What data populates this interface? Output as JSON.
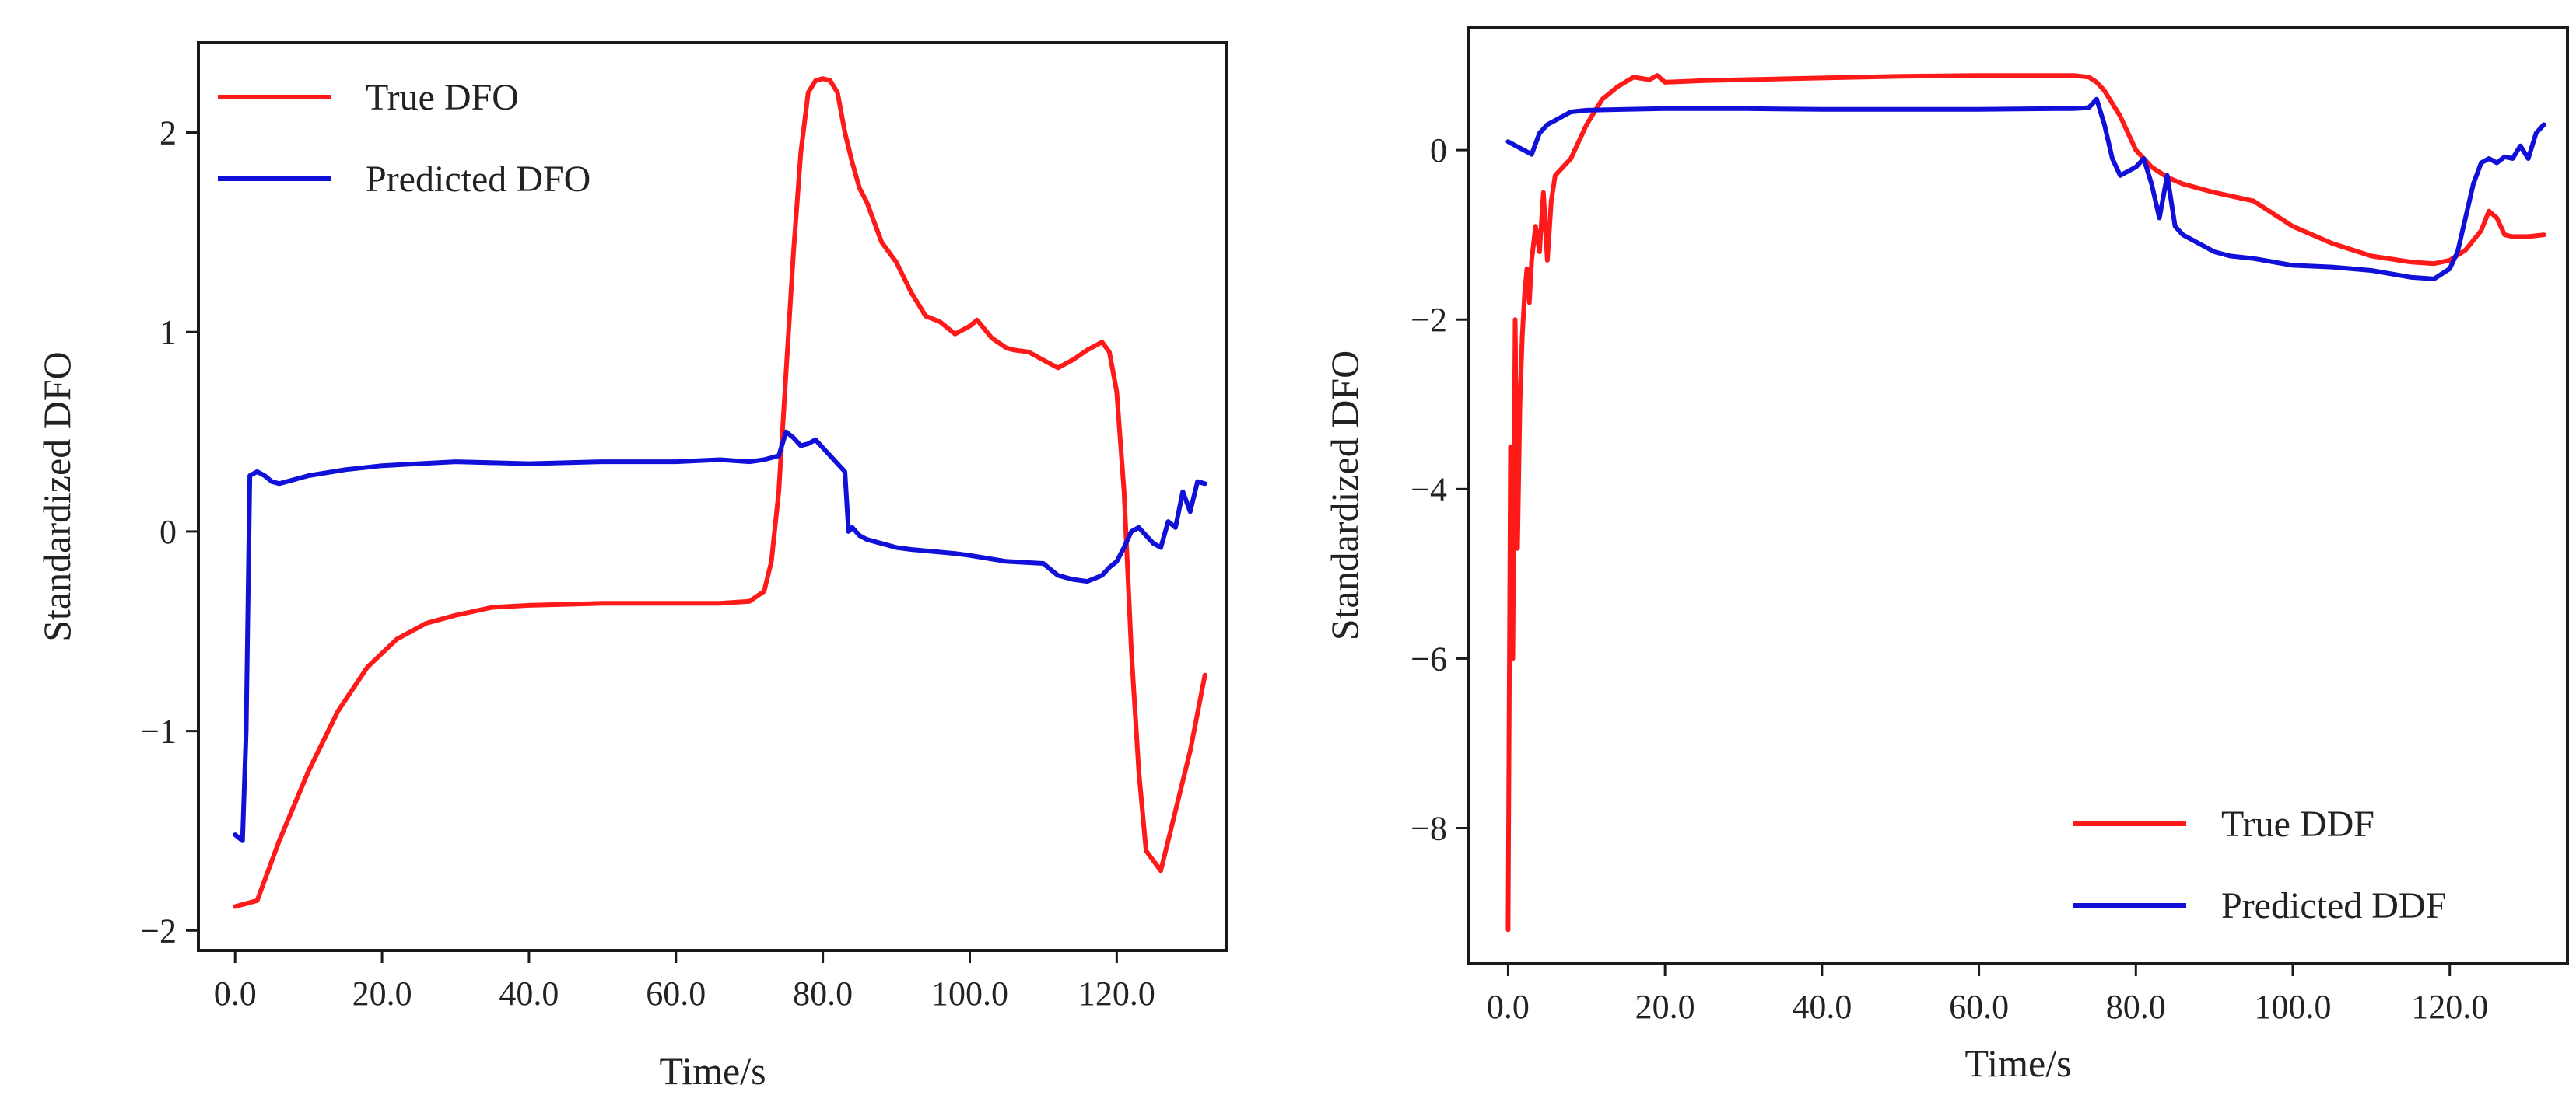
{
  "chart_data": [
    {
      "type": "line",
      "xlabel": "Time/s",
      "ylabel": "Standardized DFO",
      "xlim": [
        -5,
        135
      ],
      "ylim": [
        -2.1,
        2.45
      ],
      "xticks": [
        0,
        20,
        40,
        60,
        80,
        100,
        120
      ],
      "xtick_labels": [
        "0.0",
        "20.0",
        "40.0",
        "60.0",
        "80.0",
        "100.0",
        "120.0"
      ],
      "yticks": [
        -2,
        -1,
        0,
        1,
        2
      ],
      "ytick_labels": [
        "−2",
        "−1",
        "0",
        "1",
        "2"
      ],
      "legend_position": "top-left",
      "series": [
        {
          "name": "True DFO",
          "color": "#ff1a1a",
          "x": [
            0,
            3,
            6,
            10,
            14,
            18,
            22,
            26,
            30,
            35,
            40,
            50,
            60,
            66,
            70,
            72,
            73,
            74,
            75,
            76,
            77,
            78,
            79,
            80,
            81,
            82,
            83,
            84,
            85,
            86,
            88,
            90,
            92,
            94,
            96,
            98,
            100,
            101,
            103,
            105,
            106,
            108,
            110,
            112,
            114,
            116,
            118,
            119,
            120,
            121,
            122,
            123,
            124,
            125,
            126,
            128,
            130,
            132
          ],
          "y": [
            -1.88,
            -1.85,
            -1.55,
            -1.2,
            -0.9,
            -0.68,
            -0.54,
            -0.46,
            -0.42,
            -0.38,
            -0.37,
            -0.36,
            -0.36,
            -0.36,
            -0.35,
            -0.3,
            -0.15,
            0.2,
            0.8,
            1.4,
            1.9,
            2.2,
            2.26,
            2.27,
            2.26,
            2.2,
            2.0,
            1.85,
            1.72,
            1.65,
            1.45,
            1.35,
            1.2,
            1.08,
            1.05,
            0.99,
            1.03,
            1.06,
            0.97,
            0.92,
            0.91,
            0.9,
            0.86,
            0.82,
            0.86,
            0.91,
            0.95,
            0.9,
            0.7,
            0.2,
            -0.6,
            -1.2,
            -1.6,
            -1.65,
            -1.7,
            -1.4,
            -1.1,
            -0.72
          ]
        },
        {
          "name": "Predicted DFO",
          "color": "#1010d8",
          "x": [
            0,
            1,
            1.5,
            2,
            3,
            4,
            5,
            6,
            8,
            10,
            15,
            20,
            30,
            40,
            50,
            60,
            66,
            70,
            72,
            74,
            75,
            76,
            77,
            78,
            79,
            80,
            81,
            82,
            83,
            83.5,
            84,
            85,
            86,
            88,
            90,
            92,
            95,
            98,
            100,
            105,
            110,
            112,
            114,
            116,
            118,
            119,
            120,
            121,
            122,
            123,
            124,
            125,
            126,
            127,
            128,
            129,
            130,
            131,
            132
          ],
          "y": [
            -1.52,
            -1.55,
            -1.0,
            0.28,
            0.3,
            0.28,
            0.25,
            0.24,
            0.26,
            0.28,
            0.31,
            0.33,
            0.35,
            0.34,
            0.35,
            0.35,
            0.36,
            0.35,
            0.36,
            0.38,
            0.5,
            0.47,
            0.43,
            0.44,
            0.46,
            0.42,
            0.38,
            0.34,
            0.3,
            0.0,
            0.02,
            -0.02,
            -0.04,
            -0.06,
            -0.08,
            -0.09,
            -0.1,
            -0.11,
            -0.12,
            -0.15,
            -0.16,
            -0.22,
            -0.24,
            -0.25,
            -0.22,
            -0.18,
            -0.15,
            -0.08,
            0.0,
            0.02,
            -0.02,
            -0.06,
            -0.08,
            0.05,
            0.02,
            0.2,
            0.1,
            0.25,
            0.24
          ]
        }
      ]
    },
    {
      "type": "line",
      "xlabel": "Time/s",
      "ylabel": "Standardized DFO",
      "xlim": [
        -5,
        135
      ],
      "ylim": [
        -9.6,
        1.45
      ],
      "xticks": [
        0,
        20,
        40,
        60,
        80,
        100,
        120
      ],
      "xtick_labels": [
        "0.0",
        "20.0",
        "40.0",
        "60.0",
        "80.0",
        "100.0",
        "120.0"
      ],
      "yticks": [
        -8,
        -6,
        -4,
        -2,
        0
      ],
      "ytick_labels": [
        "−8",
        "−6",
        "−4",
        "−2",
        "0"
      ],
      "legend_position": "bottom-right",
      "series": [
        {
          "name": "True DDF",
          "color": "#ff1a1a",
          "x": [
            0,
            0.3,
            0.6,
            0.9,
            1.2,
            1.5,
            1.8,
            2.1,
            2.4,
            2.7,
            3,
            3.5,
            4,
            4.5,
            5,
            5.5,
            6,
            7,
            8,
            10,
            12,
            14,
            16,
            18,
            19,
            20,
            25,
            30,
            40,
            50,
            60,
            70,
            72,
            74,
            75,
            76,
            78,
            80,
            82,
            84,
            86,
            90,
            95,
            100,
            105,
            110,
            115,
            118,
            120,
            122,
            124,
            125,
            126,
            127,
            128,
            130,
            132
          ],
          "y": [
            -9.2,
            -3.5,
            -6.0,
            -2.0,
            -4.7,
            -3.0,
            -2.2,
            -1.7,
            -1.4,
            -1.8,
            -1.3,
            -0.9,
            -1.2,
            -0.5,
            -1.3,
            -0.6,
            -0.3,
            -0.2,
            -0.1,
            0.3,
            0.6,
            0.75,
            0.86,
            0.83,
            0.88,
            0.8,
            0.82,
            0.83,
            0.85,
            0.87,
            0.88,
            0.88,
            0.88,
            0.86,
            0.8,
            0.7,
            0.4,
            0.0,
            -0.2,
            -0.32,
            -0.4,
            -0.5,
            -0.6,
            -0.9,
            -1.1,
            -1.25,
            -1.32,
            -1.34,
            -1.3,
            -1.18,
            -0.95,
            -0.72,
            -0.8,
            -1.0,
            -1.02,
            -1.02,
            -1.0
          ]
        },
        {
          "name": "Predicted DDF",
          "color": "#1010d8",
          "x": [
            0,
            1,
            2,
            3,
            4,
            5,
            6,
            8,
            10,
            15,
            20,
            30,
            40,
            50,
            60,
            70,
            72,
            74,
            75,
            76,
            77,
            78,
            79,
            80,
            81,
            82,
            83,
            84,
            85,
            86,
            88,
            90,
            92,
            95,
            100,
            105,
            110,
            115,
            118,
            120,
            121,
            122,
            123,
            124,
            125,
            126,
            127,
            128,
            129,
            130,
            131,
            132
          ],
          "y": [
            0.1,
            0.05,
            0.0,
            -0.05,
            0.2,
            0.3,
            0.35,
            0.45,
            0.47,
            0.48,
            0.49,
            0.49,
            0.48,
            0.48,
            0.48,
            0.49,
            0.49,
            0.5,
            0.6,
            0.3,
            -0.1,
            -0.3,
            -0.25,
            -0.2,
            -0.1,
            -0.4,
            -0.8,
            -0.3,
            -0.9,
            -1.0,
            -1.1,
            -1.2,
            -1.25,
            -1.28,
            -1.36,
            -1.38,
            -1.42,
            -1.5,
            -1.52,
            -1.4,
            -1.2,
            -0.8,
            -0.4,
            -0.15,
            -0.1,
            -0.15,
            -0.08,
            -0.1,
            0.05,
            -0.1,
            0.2,
            0.3
          ]
        }
      ]
    }
  ]
}
